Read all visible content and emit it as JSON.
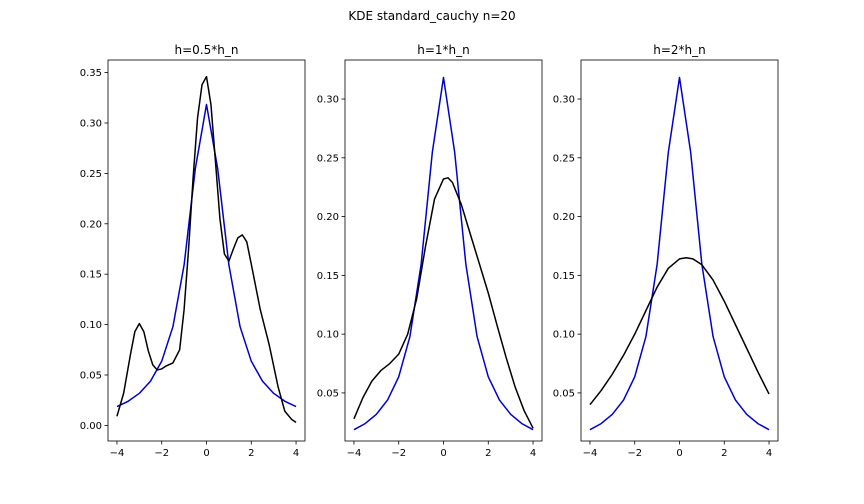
{
  "suptitle": "KDE standard_cauchy n=20",
  "chart_data": [
    {
      "type": "line",
      "title": "h=0.5*h_n",
      "xlim": [
        -4.4,
        4.4
      ],
      "ylim": [
        -0.0155,
        0.3625
      ],
      "xticks": [
        -4,
        -2,
        0,
        2,
        4
      ],
      "xtick_labels": [
        "−4",
        "−2",
        "0",
        "2",
        "4"
      ],
      "yticks": [
        0.0,
        0.05,
        0.1,
        0.15,
        0.2,
        0.25,
        0.3,
        0.35
      ],
      "ytick_labels": [
        "0.00",
        "0.05",
        "0.10",
        "0.15",
        "0.20",
        "0.25",
        "0.30",
        "0.35"
      ],
      "grid": false,
      "series": [
        {
          "color": "#0000cc",
          "x": [
            -4,
            -3.5,
            -3,
            -2.5,
            -2,
            -1.5,
            -1,
            -0.5,
            0,
            0.5,
            1,
            1.5,
            2,
            2.5,
            3,
            3.5,
            4
          ],
          "y": [
            0.0187,
            0.0239,
            0.0318,
            0.0439,
            0.0637,
            0.0979,
            0.1592,
            0.2546,
            0.3183,
            0.2546,
            0.1592,
            0.0979,
            0.0637,
            0.0439,
            0.0318,
            0.0239,
            0.0187
          ]
        },
        {
          "color": "#000000",
          "x": [
            -4,
            -3.7,
            -3.4,
            -3.2,
            -3.0,
            -2.8,
            -2.6,
            -2.4,
            -2.2,
            -2.0,
            -1.8,
            -1.5,
            -1.2,
            -1.0,
            -0.8,
            -0.6,
            -0.4,
            -0.2,
            0.0,
            0.2,
            0.4,
            0.6,
            0.8,
            1.0,
            1.2,
            1.4,
            1.6,
            1.8,
            2.0,
            2.4,
            2.8,
            3.2,
            3.5,
            3.8,
            4.0
          ],
          "y": [
            0.009,
            0.032,
            0.07,
            0.093,
            0.101,
            0.093,
            0.074,
            0.06,
            0.055,
            0.056,
            0.059,
            0.062,
            0.075,
            0.115,
            0.175,
            0.245,
            0.305,
            0.338,
            0.346,
            0.318,
            0.262,
            0.205,
            0.17,
            0.163,
            0.175,
            0.186,
            0.189,
            0.182,
            0.16,
            0.115,
            0.08,
            0.038,
            0.014,
            0.006,
            0.003
          ]
        }
      ]
    },
    {
      "type": "line",
      "title": "h=1*h_n",
      "xlim": [
        -4.4,
        4.4
      ],
      "ylim": [
        0.0091,
        0.3332
      ],
      "xticks": [
        -4,
        -2,
        0,
        2,
        4
      ],
      "xtick_labels": [
        "−4",
        "−2",
        "0",
        "2",
        "4"
      ],
      "yticks": [
        0.05,
        0.1,
        0.15,
        0.2,
        0.25,
        0.3
      ],
      "ytick_labels": [
        "0.05",
        "0.10",
        "0.15",
        "0.20",
        "0.25",
        "0.30"
      ],
      "grid": false,
      "series": [
        {
          "color": "#0000cc",
          "x": [
            -4,
            -3.5,
            -3,
            -2.5,
            -2,
            -1.5,
            -1,
            -0.5,
            0,
            0.5,
            1,
            1.5,
            2,
            2.5,
            3,
            3.5,
            4
          ],
          "y": [
            0.0187,
            0.0239,
            0.0318,
            0.0439,
            0.0637,
            0.0979,
            0.1592,
            0.2546,
            0.3183,
            0.2546,
            0.1592,
            0.0979,
            0.0637,
            0.0439,
            0.0318,
            0.0239,
            0.0187
          ]
        },
        {
          "color": "#000000",
          "x": [
            -4,
            -3.6,
            -3.2,
            -2.8,
            -2.4,
            -2.0,
            -1.6,
            -1.2,
            -0.8,
            -0.4,
            0.0,
            0.2,
            0.4,
            0.8,
            1.2,
            1.6,
            2.0,
            2.4,
            2.8,
            3.2,
            3.6,
            4.0
          ],
          "y": [
            0.028,
            0.046,
            0.06,
            0.069,
            0.075,
            0.083,
            0.1,
            0.13,
            0.175,
            0.215,
            0.232,
            0.233,
            0.229,
            0.21,
            0.185,
            0.16,
            0.135,
            0.107,
            0.08,
            0.055,
            0.035,
            0.02
          ]
        }
      ]
    },
    {
      "type": "line",
      "title": "h=2*h_n",
      "xlim": [
        -4.4,
        4.4
      ],
      "ylim": [
        0.0091,
        0.3332
      ],
      "xticks": [
        -4,
        -2,
        0,
        2,
        4
      ],
      "xtick_labels": [
        "−4",
        "−2",
        "0",
        "2",
        "4"
      ],
      "yticks": [
        0.05,
        0.1,
        0.15,
        0.2,
        0.25,
        0.3
      ],
      "ytick_labels": [
        "0.05",
        "0.10",
        "0.15",
        "0.20",
        "0.25",
        "0.30"
      ],
      "grid": false,
      "series": [
        {
          "color": "#0000cc",
          "x": [
            -4,
            -3.5,
            -3,
            -2.5,
            -2,
            -1.5,
            -1,
            -0.5,
            0,
            0.5,
            1,
            1.5,
            2,
            2.5,
            3,
            3.5,
            4
          ],
          "y": [
            0.0187,
            0.0239,
            0.0318,
            0.0439,
            0.0637,
            0.0979,
            0.1592,
            0.2546,
            0.3183,
            0.2546,
            0.1592,
            0.0979,
            0.0637,
            0.0439,
            0.0318,
            0.0239,
            0.0187
          ]
        },
        {
          "color": "#000000",
          "x": [
            -4,
            -3.5,
            -3.0,
            -2.5,
            -2.0,
            -1.5,
            -1.0,
            -0.5,
            0.0,
            0.3,
            0.6,
            1.0,
            1.5,
            2.0,
            2.5,
            3.0,
            3.5,
            4.0
          ],
          "y": [
            0.04,
            0.052,
            0.066,
            0.082,
            0.1,
            0.12,
            0.14,
            0.156,
            0.164,
            0.165,
            0.164,
            0.159,
            0.146,
            0.128,
            0.108,
            0.088,
            0.068,
            0.049
          ]
        }
      ]
    }
  ]
}
